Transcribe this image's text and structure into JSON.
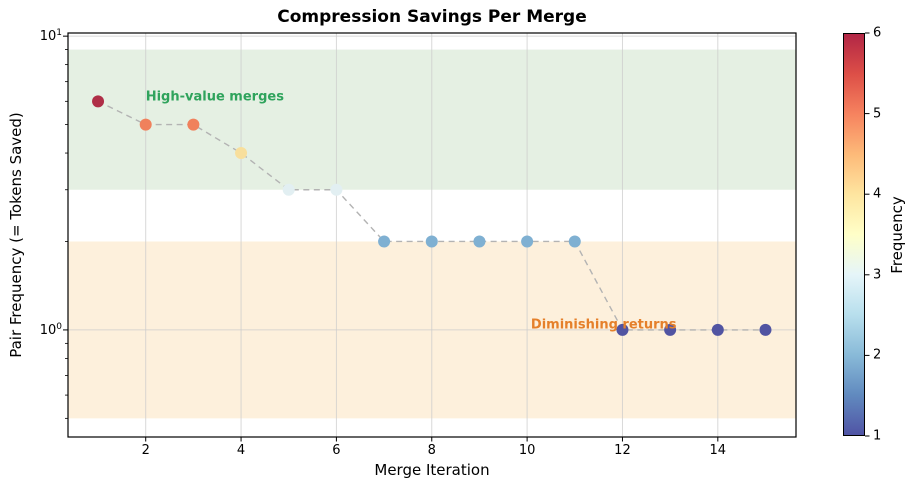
{
  "chart_data": {
    "type": "scatter",
    "title": "Compression Savings Per Merge",
    "xlabel": "Merge Iteration",
    "ylabel": "Pair Frequency (= Tokens Saved)",
    "yscale": "log",
    "grid": true,
    "x": [
      1,
      2,
      3,
      4,
      5,
      6,
      7,
      8,
      9,
      10,
      11,
      12,
      13,
      14,
      15
    ],
    "y": [
      6,
      5,
      5,
      4,
      3,
      3,
      2,
      2,
      2,
      2,
      2,
      1,
      1,
      1,
      1
    ],
    "xlim": [
      0.37,
      15.64
    ],
    "ylim": [
      0.432,
      10.25
    ],
    "x_ticks": [
      2,
      4,
      6,
      8,
      10,
      12,
      14
    ],
    "y_major_ticks": [
      {
        "value": 1,
        "mantissa": "10",
        "exponent": "0"
      },
      {
        "value": 10,
        "mantissa": "10",
        "exponent": "1"
      }
    ],
    "y_minor_ticks": [
      0.5,
      0.6,
      0.7,
      0.8,
      0.9,
      2,
      3,
      4,
      5,
      6,
      7,
      8,
      9
    ],
    "line": {
      "style": "dashed",
      "color": "#b3b3b3"
    },
    "point_colors_by_frequency": {
      "1": "#5154a2",
      "2": "#7fb0d2",
      "3": "#e2eff2",
      "4": "#f8df9c",
      "5": "#f0815c",
      "6": "#af2e47"
    },
    "bands": [
      {
        "name": "high-value",
        "from": 3,
        "to": 9,
        "color": "#e5f0e3"
      },
      {
        "name": "diminishing",
        "from": 0.5,
        "to": 2,
        "color": "#fdf0dc"
      }
    ],
    "annotations": [
      {
        "text": "High-value merges",
        "x": 2.0,
        "y": 6.2,
        "color": "#2fa35c"
      },
      {
        "text": "Diminishing returns",
        "x": 10.08,
        "y": 1.04,
        "color": "#e5802b"
      }
    ],
    "colorbar": {
      "label": "Frequency",
      "min": 1,
      "max": 6,
      "ticks": [
        1,
        2,
        3,
        4,
        5,
        6
      ],
      "gradient_top_to_bottom": [
        "#b22646",
        "#dd4f47",
        "#f6835f",
        "#fdba79",
        "#fee5a0",
        "#ffffc8",
        "#e5f5f9",
        "#b8dfed",
        "#89bad8",
        "#618abf",
        "#5054a5"
      ]
    }
  }
}
